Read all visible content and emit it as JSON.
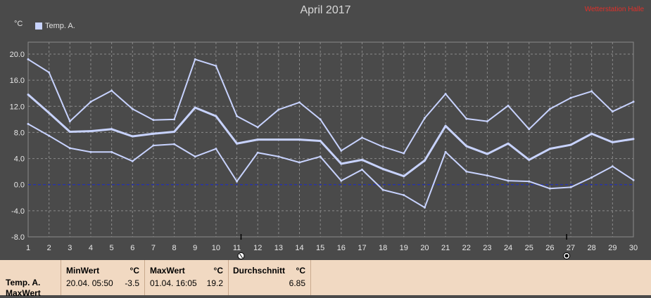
{
  "title": "April 2017",
  "badge": "Wetterstation Halle",
  "unit": "°C",
  "legend": "Temp. A.",
  "colors": {
    "background": "#4a4a4a",
    "grid": "#8a8a8a",
    "series": "#c8d3ff",
    "zero_line": "#1a2bd0"
  },
  "chart_data": {
    "type": "line",
    "title": "April 2017",
    "ylabel": "°C",
    "ylim": [
      -8.0,
      20.0
    ],
    "yticks": [
      "20.0",
      "16.0",
      "12.0",
      "8.0",
      "4.0",
      "0.0",
      "-4.0",
      "-8.0"
    ],
    "x": [
      1,
      2,
      3,
      4,
      5,
      6,
      7,
      8,
      9,
      10,
      11,
      12,
      13,
      14,
      15,
      16,
      17,
      18,
      19,
      20,
      21,
      22,
      23,
      24,
      25,
      26,
      27,
      28,
      29,
      30
    ],
    "grid": true,
    "legend_position": "top-left",
    "series": [
      {
        "name": "Temp. A.",
        "values": [
          13.8,
          11.0,
          8.1,
          8.2,
          8.5,
          7.4,
          7.8,
          8.1,
          11.8,
          10.5,
          6.3,
          6.9,
          6.9,
          6.9,
          6.7,
          3.2,
          3.8,
          2.4,
          1.3,
          3.7,
          9.0,
          5.9,
          4.7,
          6.3,
          3.8,
          5.5,
          6.1,
          7.8,
          6.5,
          7.0
        ]
      },
      {
        "name": "",
        "values": [
          19.2,
          17.2,
          9.7,
          12.7,
          14.4,
          11.6,
          9.9,
          10.0,
          19.2,
          18.2,
          10.5,
          8.8,
          11.5,
          12.6,
          10.0,
          5.2,
          7.2,
          5.8,
          4.8,
          10.2,
          13.9,
          10.1,
          9.7,
          12.1,
          8.5,
          11.6,
          13.3,
          14.3,
          11.2,
          12.7
        ]
      },
      {
        "name": "",
        "values": [
          9.3,
          7.5,
          5.6,
          5.0,
          5.0,
          3.6,
          6.0,
          6.2,
          4.3,
          5.5,
          0.5,
          4.9,
          4.3,
          3.4,
          4.3,
          0.6,
          2.3,
          -0.8,
          -1.6,
          -3.5,
          5.0,
          2.0,
          1.4,
          0.6,
          0.5,
          -0.6,
          -0.4,
          1.1,
          2.8,
          0.7
        ]
      }
    ],
    "markers": [
      {
        "day": 11.2,
        "label": "crescent-moon"
      },
      {
        "day": 26.8,
        "label": "full-moon"
      }
    ]
  },
  "table": {
    "row1_label": "Temp. A.",
    "row2_label": "MaxWert",
    "min": {
      "header": "MinWert",
      "unit": "°C",
      "date": "20.04.  05:50",
      "value": "-3.5"
    },
    "max": {
      "header": "MaxWert",
      "unit": "°C",
      "date": "01.04.  16:05",
      "value": "19.2"
    },
    "avg": {
      "header": "Durchschnitt",
      "unit": "°C",
      "value": "6.85"
    }
  }
}
